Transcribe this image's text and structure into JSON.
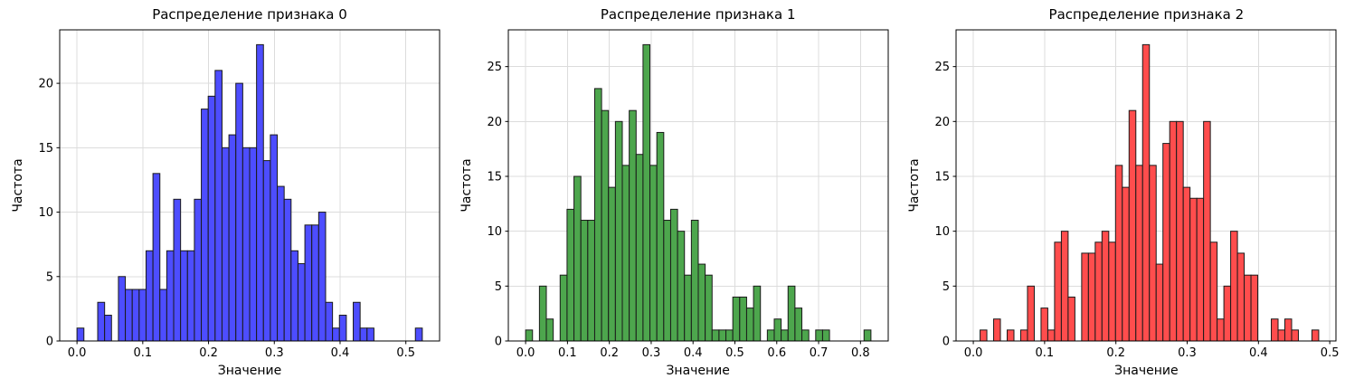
{
  "figure": {
    "background_color": "#ffffff",
    "grid_on": true
  },
  "chart_data": [
    {
      "type": "bar",
      "subtype": "histogram",
      "title": "Распределение признака 0",
      "xlabel": "Значение",
      "ylabel": "Частота",
      "series_color": "#4d4dff",
      "edge_color": "#1a1a1a",
      "grid_color": "#dcdcdc",
      "bin_start": 0.0,
      "bin_width": 0.0105,
      "counts": [
        1,
        0,
        0,
        3,
        2,
        0,
        5,
        4,
        4,
        4,
        7,
        13,
        4,
        7,
        11,
        7,
        7,
        11,
        18,
        19,
        21,
        15,
        16,
        20,
        15,
        15,
        23,
        14,
        16,
        12,
        11,
        7,
        6,
        9,
        9,
        10,
        3,
        1,
        2,
        0,
        3,
        1,
        1,
        0,
        0,
        0,
        0,
        0,
        0,
        1
      ],
      "xlim": [
        -0.0263,
        0.5513
      ],
      "ylim": [
        0,
        24.15
      ],
      "xtick_values": [
        0.0,
        0.1,
        0.2,
        0.3,
        0.4,
        0.5
      ],
      "xtick_labels": [
        "0.0",
        "0.1",
        "0.2",
        "0.3",
        "0.4",
        "0.5"
      ],
      "ytick_values": [
        0,
        5,
        10,
        15,
        20
      ],
      "ytick_labels": [
        "0",
        "5",
        "10",
        "15",
        "20"
      ]
    },
    {
      "type": "bar",
      "subtype": "histogram",
      "title": "Распределение признака 1",
      "xlabel": "Значение",
      "ylabel": "Частота",
      "series_color": "#4da64d",
      "edge_color": "#1a1a1a",
      "grid_color": "#dcdcdc",
      "bin_start": 0.0,
      "bin_width": 0.0165,
      "counts": [
        1,
        0,
        5,
        2,
        0,
        6,
        12,
        15,
        11,
        11,
        23,
        21,
        14,
        20,
        16,
        21,
        17,
        27,
        16,
        19,
        11,
        12,
        10,
        6,
        11,
        7,
        6,
        1,
        1,
        1,
        4,
        4,
        3,
        5,
        0,
        1,
        2,
        1,
        5,
        3,
        1,
        0,
        1,
        1,
        0,
        0,
        0,
        0,
        0,
        1
      ],
      "xlim": [
        -0.0413,
        0.8663
      ],
      "ylim": [
        0,
        28.35
      ],
      "xtick_values": [
        0.0,
        0.1,
        0.2,
        0.3,
        0.4,
        0.5,
        0.6,
        0.7,
        0.8
      ],
      "xtick_labels": [
        "0.0",
        "0.1",
        "0.2",
        "0.3",
        "0.4",
        "0.5",
        "0.6",
        "0.7",
        "0.8"
      ],
      "ytick_values": [
        0,
        5,
        10,
        15,
        20,
        25
      ],
      "ytick_labels": [
        "0",
        "5",
        "10",
        "15",
        "20",
        "25"
      ]
    },
    {
      "type": "bar",
      "subtype": "histogram",
      "title": "Распределение признака 2",
      "xlabel": "Значение",
      "ylabel": "Частота",
      "series_color": "#ff4d4d",
      "edge_color": "#1a1a1a",
      "grid_color": "#dcdcdc",
      "bin_start": 0.0,
      "bin_width": 0.0095,
      "counts": [
        0,
        1,
        0,
        2,
        0,
        1,
        0,
        1,
        5,
        0,
        3,
        1,
        9,
        10,
        4,
        0,
        8,
        8,
        9,
        10,
        9,
        16,
        14,
        21,
        16,
        27,
        16,
        7,
        18,
        20,
        20,
        14,
        13,
        13,
        20,
        9,
        2,
        5,
        10,
        8,
        6,
        6,
        0,
        0,
        2,
        1,
        2,
        1,
        0,
        0,
        1
      ],
      "xlim": [
        -0.0242,
        0.5087
      ],
      "ylim": [
        0,
        28.35
      ],
      "xtick_values": [
        0.0,
        0.1,
        0.2,
        0.3,
        0.4,
        0.5
      ],
      "xtick_labels": [
        "0.0",
        "0.1",
        "0.2",
        "0.3",
        "0.4",
        "0.5"
      ],
      "ytick_values": [
        0,
        5,
        10,
        15,
        20,
        25
      ],
      "ytick_labels": [
        "0",
        "5",
        "10",
        "15",
        "20",
        "25"
      ]
    }
  ]
}
